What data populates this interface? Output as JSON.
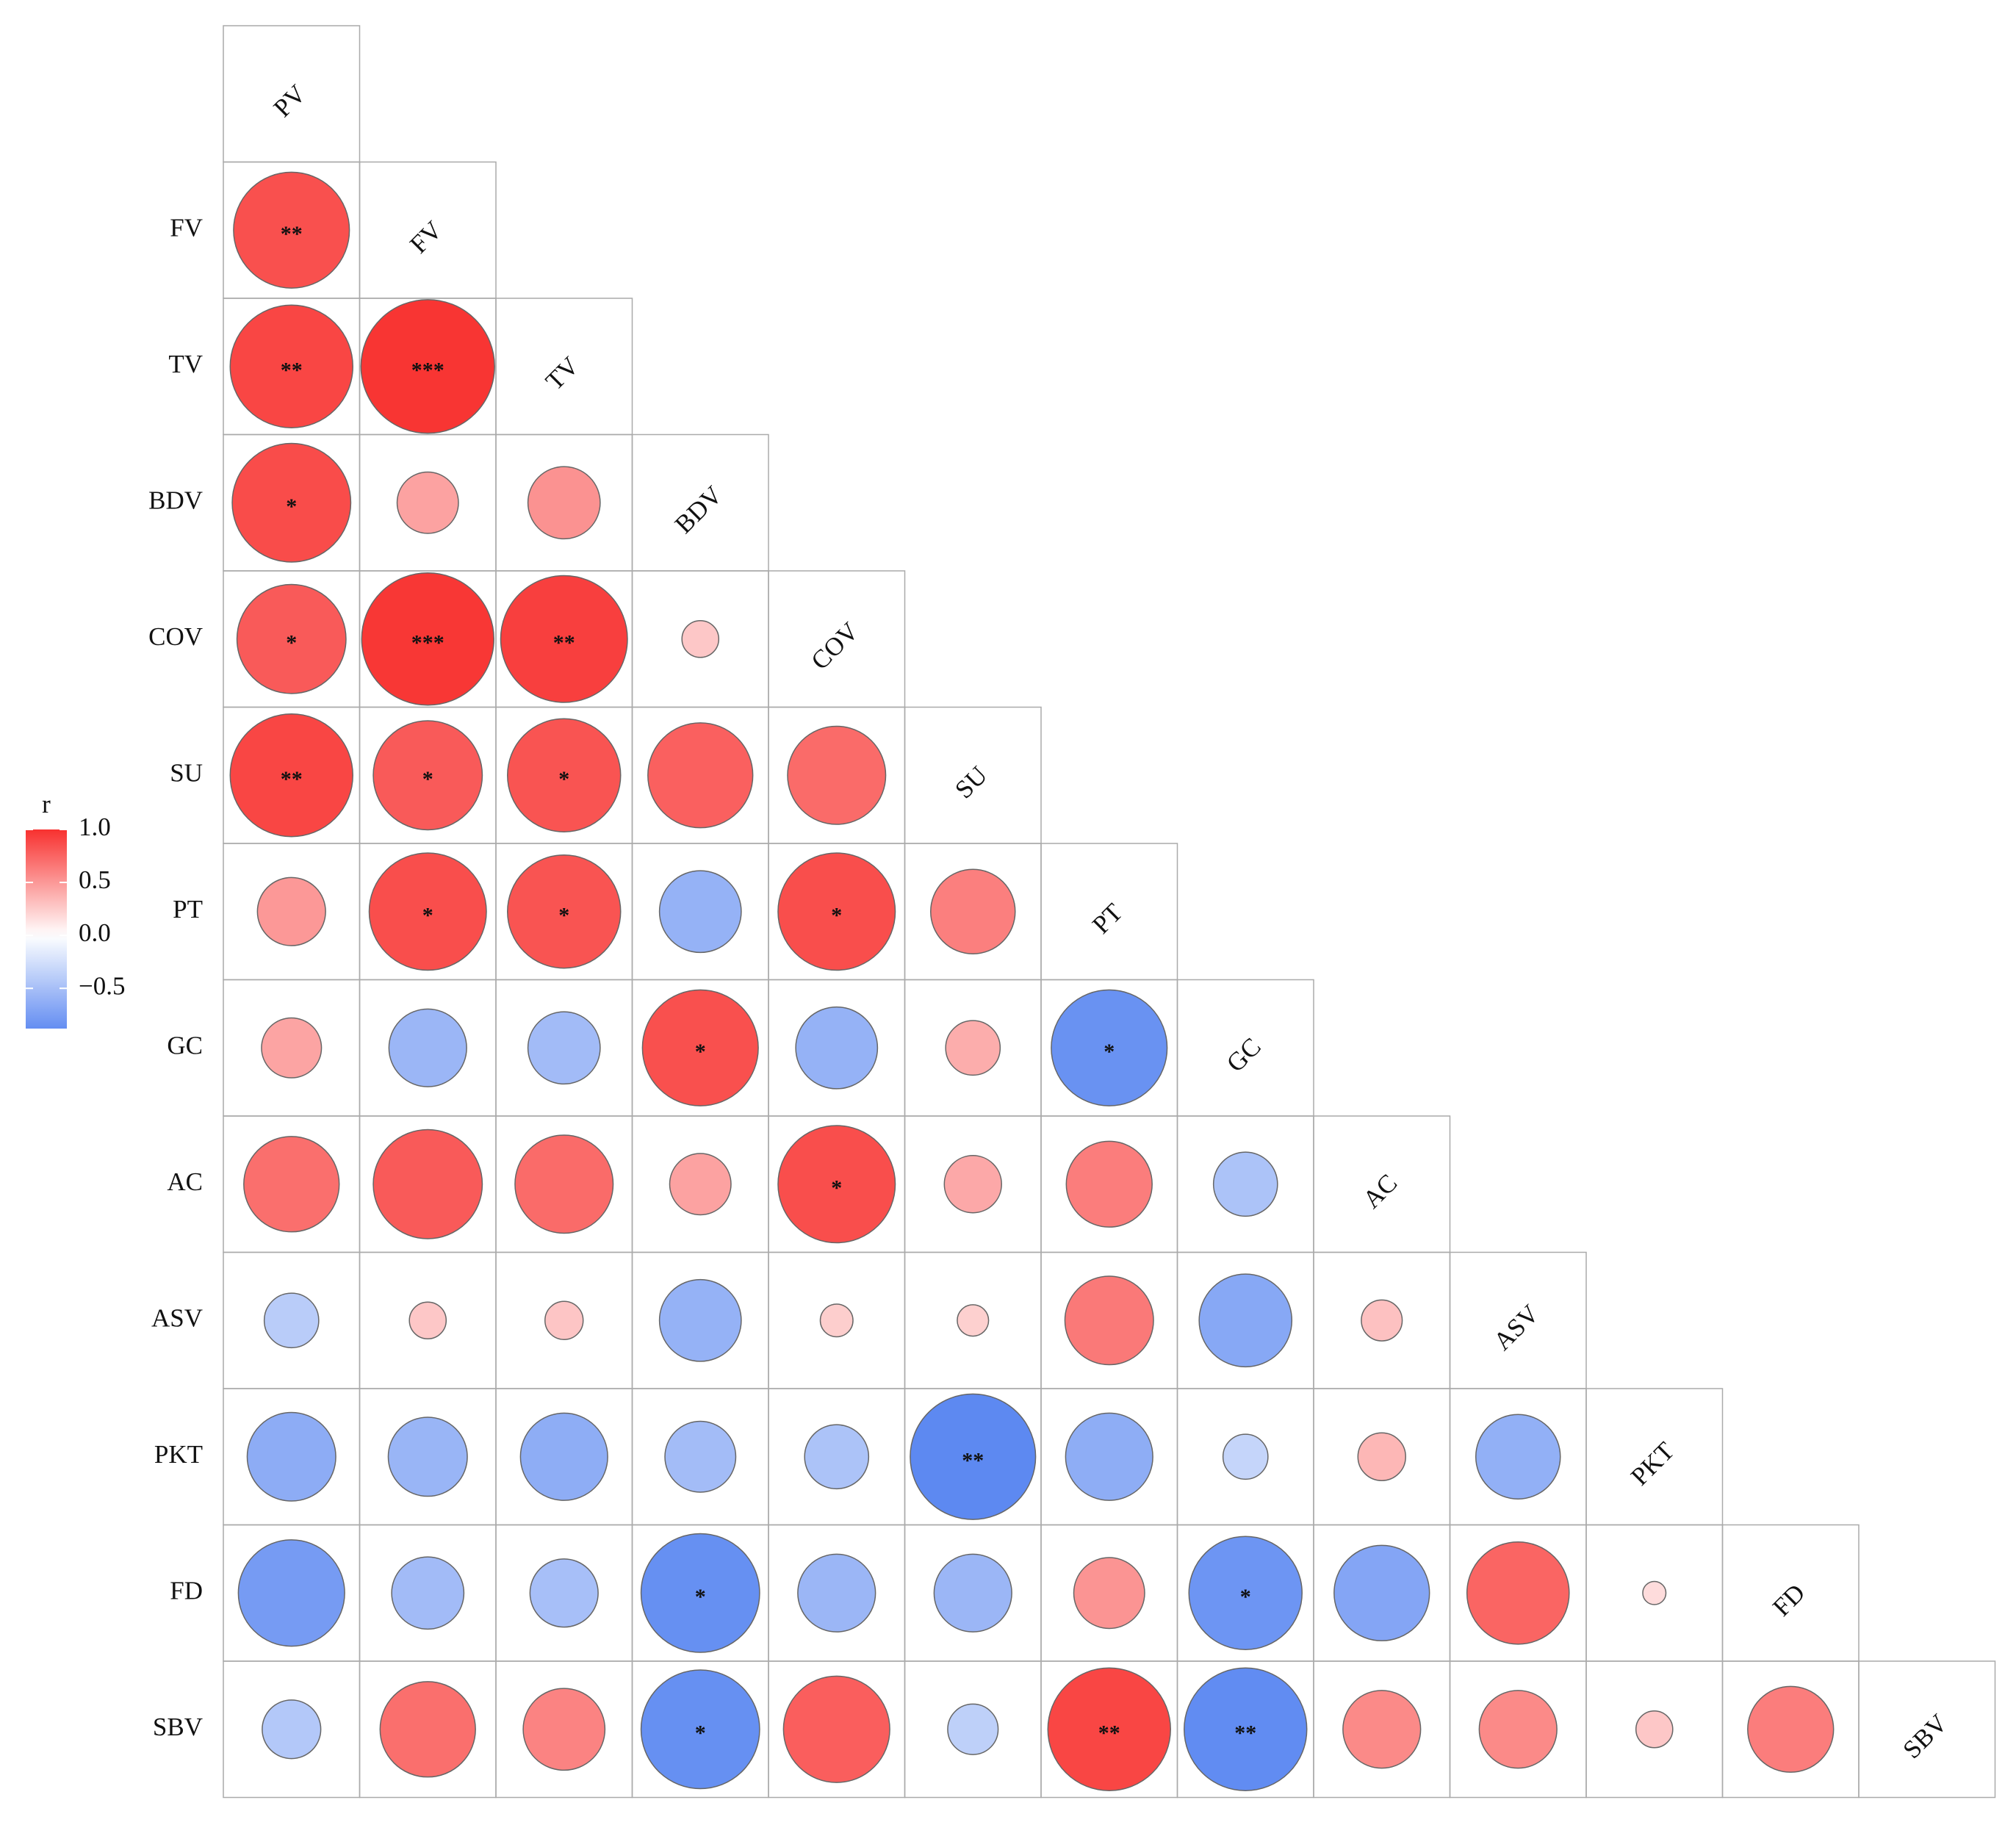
{
  "chart_data": {
    "type": "correlogram",
    "variables": [
      "PV",
      "FV",
      "TV",
      "BDV",
      "COV",
      "SU",
      "PT",
      "GC",
      "AC",
      "ASV",
      "PKT",
      "FD",
      "SBV"
    ],
    "r": [
      [
        0.85
      ],
      [
        0.9,
        0.98
      ],
      [
        0.87,
        0.45,
        0.53
      ],
      [
        0.8,
        0.97,
        0.93,
        0.27
      ],
      [
        0.9,
        0.8,
        0.83,
        0.77,
        0.72
      ],
      [
        0.5,
        0.86,
        0.83,
        -0.6,
        0.86,
        0.62
      ],
      [
        0.44,
        -0.57,
        -0.53,
        0.85,
        -0.6,
        0.4,
        -0.85
      ],
      [
        0.7,
        0.8,
        0.72,
        0.45,
        0.86,
        0.42,
        0.63,
        -0.47
      ],
      [
        -0.4,
        0.27,
        0.28,
        -0.6,
        0.24,
        0.23,
        0.65,
        -0.68,
        0.3
      ],
      [
        -0.65,
        -0.58,
        -0.64,
        -0.52,
        -0.47,
        -0.92,
        -0.64,
        -0.33,
        0.35,
        -0.62
      ],
      [
        -0.78,
        -0.53,
        -0.5,
        -0.87,
        -0.57,
        -0.57,
        0.52,
        -0.83,
        -0.7,
        0.75,
        0.17
      ],
      [
        -0.43,
        0.7,
        0.6,
        -0.87,
        0.78,
        -0.37,
        0.9,
        -0.9,
        0.57,
        0.57,
        0.27,
        0.63
      ]
    ],
    "stars": [
      [
        "**"
      ],
      [
        "**",
        "***"
      ],
      [
        "*",
        null,
        null
      ],
      [
        "*",
        "***",
        "**",
        null
      ],
      [
        "**",
        "*",
        "*",
        null,
        null
      ],
      [
        null,
        "*",
        "*",
        null,
        "*",
        null
      ],
      [
        null,
        null,
        null,
        "*",
        null,
        null,
        "*"
      ],
      [
        null,
        null,
        null,
        null,
        "*",
        null,
        null,
        null
      ],
      [
        null,
        null,
        null,
        null,
        null,
        null,
        null,
        null,
        null
      ],
      [
        null,
        null,
        null,
        null,
        null,
        "**",
        null,
        null,
        null,
        null
      ],
      [
        null,
        null,
        null,
        "*",
        null,
        null,
        null,
        "*",
        null,
        null,
        null
      ],
      [
        null,
        null,
        null,
        "*",
        null,
        null,
        "**",
        "**",
        null,
        null,
        null,
        null
      ]
    ],
    "legend_title": "r",
    "clim": [
      -0.88,
      1.0
    ],
    "cticks": [
      {
        "value": 1.0,
        "label": "1.0"
      },
      {
        "value": 0.5,
        "label": "0.5"
      },
      {
        "value": 0.0,
        "label": "0.0"
      },
      {
        "value": -0.5,
        "label": "−0.5"
      }
    ],
    "colors": {
      "negative": "#4f7ff0",
      "zero": "#ffffff",
      "positive": "#f8312f"
    }
  }
}
